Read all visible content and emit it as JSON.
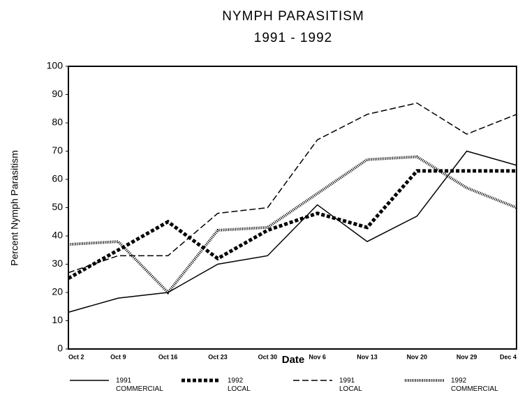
{
  "chart_data": {
    "type": "line",
    "title": "NYMPH PARASITISM",
    "subtitle": "1991 - 1992",
    "x_label": "Date",
    "y_label": "Percent Nymph Parasitism",
    "categories": [
      "Oct 2",
      "Oct 9",
      "Oct 16",
      "Oct 23",
      "Oct 30",
      "Nov 6",
      "Nov 13",
      "Nov 20",
      "Nov 29",
      "Dec 4"
    ],
    "series": [
      {
        "name": "1991 COMMERCIAL",
        "color": "#000000",
        "style": "solid",
        "values": [
          13,
          18,
          20,
          30,
          33,
          51,
          38,
          47,
          70,
          65
        ]
      },
      {
        "name": "1992 LOCAL",
        "color": "#000000",
        "style": "thick-dotted",
        "values": [
          25,
          35,
          45,
          32,
          42,
          48,
          43,
          63,
          63,
          63
        ]
      },
      {
        "name": "1991 LOCAL",
        "color": "#000000",
        "style": "dashed",
        "values": [
          27,
          33,
          33,
          48,
          50,
          74,
          83,
          87,
          76,
          83
        ]
      },
      {
        "name": "1992 COMMERCIAL",
        "color": "#000000",
        "style": "dotted",
        "values": [
          37,
          38,
          20,
          42,
          43,
          55,
          67,
          68,
          57,
          50
        ]
      }
    ],
    "ylim": [
      0,
      100
    ],
    "yticks": [
      0,
      10,
      20,
      30,
      40,
      50,
      60,
      70,
      80,
      90,
      100
    ],
    "grid": false,
    "legend": "bottom"
  }
}
